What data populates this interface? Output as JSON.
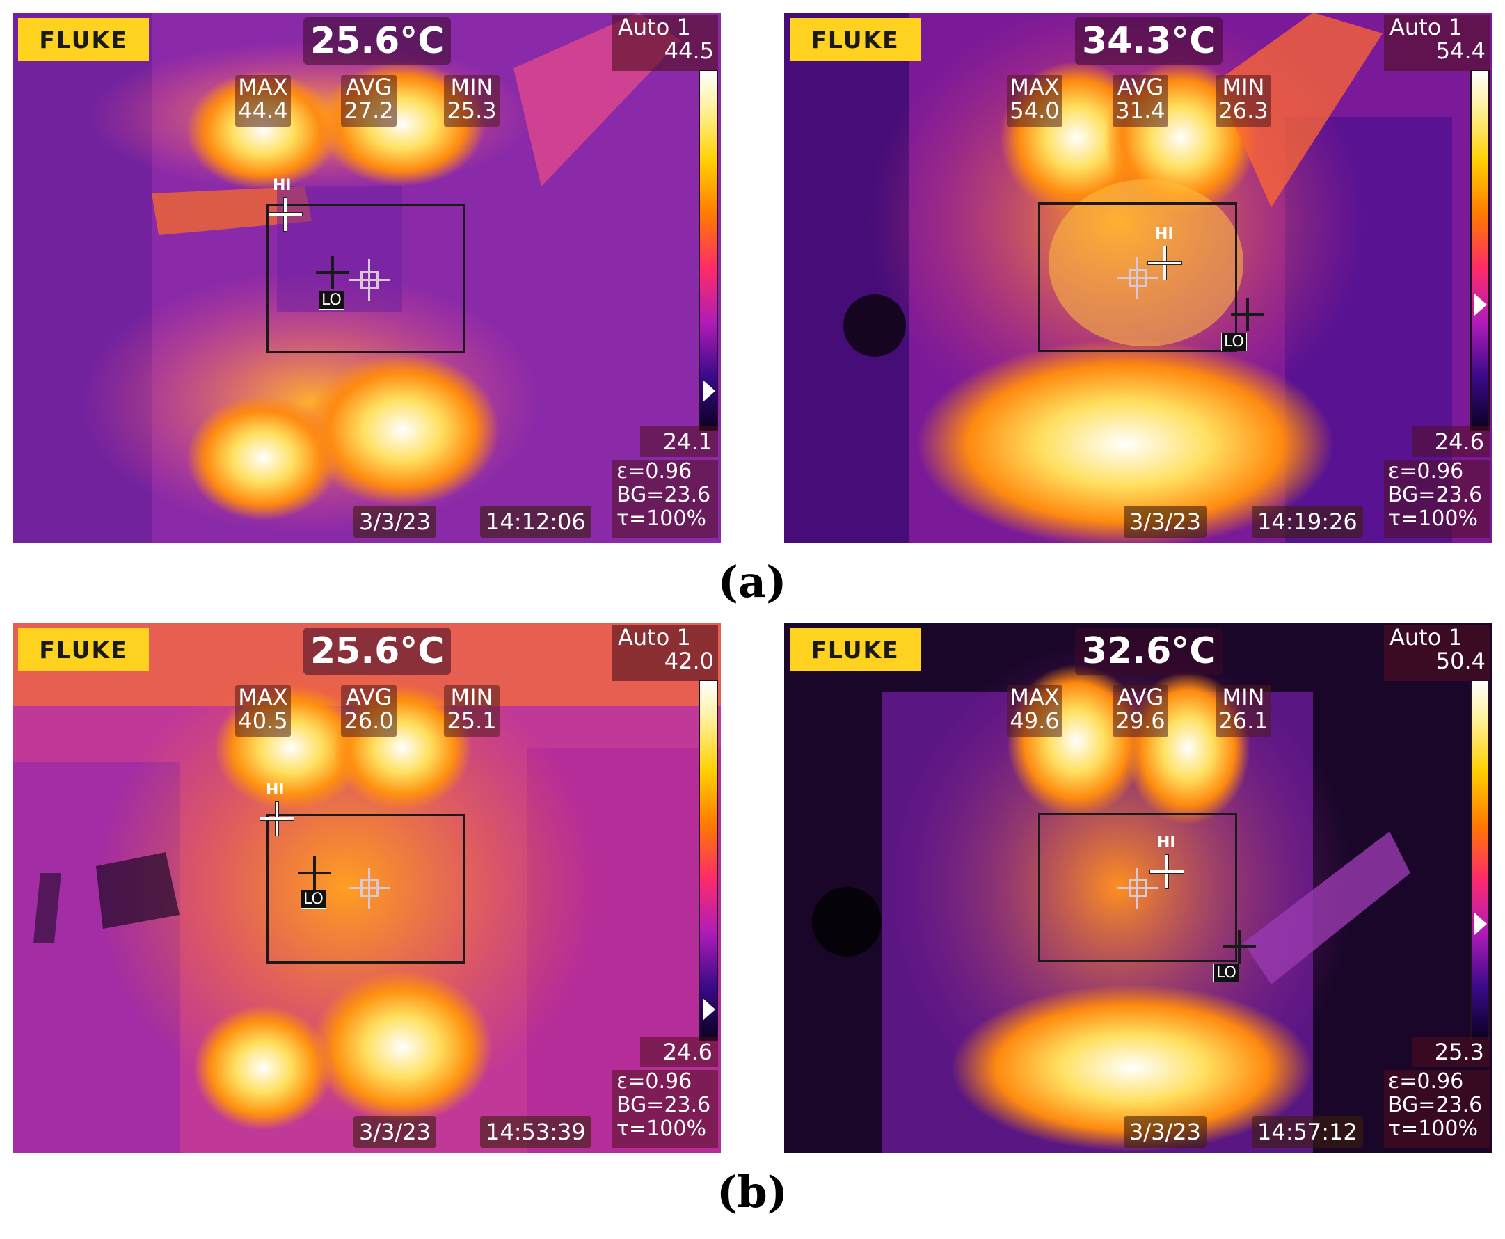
{
  "panels": [
    {
      "logo": "FLUKE",
      "center_temp": "25.6°C",
      "mode": "Auto 1",
      "scale_max": "44.5",
      "scale_min": "24.1",
      "stats": {
        "max_label": "MAX",
        "max": "44.4",
        "avg_label": "AVG",
        "avg": "27.2",
        "min_label": "MIN",
        "min": "25.3"
      },
      "params": {
        "emissivity": "ε=0.96",
        "bg": "BG=23.6",
        "tau": "τ=100%"
      },
      "date": "3/3/23",
      "time": "14:12:06",
      "hi": "HI",
      "lo": "LO"
    },
    {
      "logo": "FLUKE",
      "center_temp": "34.3°C",
      "mode": "Auto 1",
      "scale_max": "54.4",
      "scale_min": "24.6",
      "stats": {
        "max_label": "MAX",
        "max": "54.0",
        "avg_label": "AVG",
        "avg": "31.4",
        "min_label": "MIN",
        "min": "26.3"
      },
      "params": {
        "emissivity": "ε=0.96",
        "bg": "BG=23.6",
        "tau": "τ=100%"
      },
      "date": "3/3/23",
      "time": "14:19:26",
      "hi": "HI",
      "lo": "LO"
    },
    {
      "logo": "FLUKE",
      "center_temp": "25.6°C",
      "mode": "Auto 1",
      "scale_max": "42.0",
      "scale_min": "24.6",
      "stats": {
        "max_label": "MAX",
        "max": "40.5",
        "avg_label": "AVG",
        "avg": "26.0",
        "min_label": "MIN",
        "min": "25.1"
      },
      "params": {
        "emissivity": "ε=0.96",
        "bg": "BG=23.6",
        "tau": "τ=100%"
      },
      "date": "3/3/23",
      "time": "14:53:39",
      "hi": "HI",
      "lo": "LO"
    },
    {
      "logo": "FLUKE",
      "center_temp": "32.6°C",
      "mode": "Auto 1",
      "scale_max": "50.4",
      "scale_min": "25.3",
      "stats": {
        "max_label": "MAX",
        "max": "49.6",
        "avg_label": "AVG",
        "avg": "29.6",
        "min_label": "MIN",
        "min": "26.1"
      },
      "params": {
        "emissivity": "ε=0.96",
        "bg": "BG=23.6",
        "tau": "τ=100%"
      },
      "date": "3/3/23",
      "time": "14:57:12",
      "hi": "HI",
      "lo": "LO"
    }
  ],
  "captions": {
    "a": "(a)",
    "b": "(b)"
  }
}
